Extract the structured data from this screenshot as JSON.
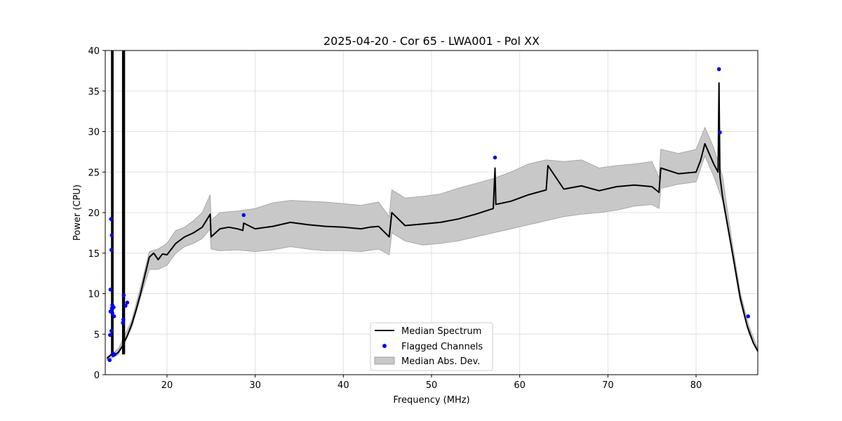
{
  "chart_data": {
    "type": "line",
    "title": "2025-04-20 - Cor 65 - LWA001 - Pol XX",
    "xlabel": "Frequency (MHz)",
    "ylabel": "Power (CPU)",
    "xlim": [
      13,
      87
    ],
    "ylim": [
      0,
      40
    ],
    "xticks": [
      20,
      30,
      40,
      50,
      60,
      70,
      80
    ],
    "yticks": [
      0,
      5,
      10,
      15,
      20,
      25,
      30,
      35,
      40
    ],
    "grid": true,
    "legend_position": "lower-center",
    "series": [
      {
        "name": "Median Spectrum",
        "color": "#000000",
        "x": [
          13.2,
          13.5,
          13.7,
          13.9,
          14.1,
          14.5,
          15.0,
          15.5,
          16.0,
          16.5,
          17.0,
          17.5,
          18.0,
          18.5,
          19.0,
          19.5,
          20.0,
          21.0,
          22.0,
          23.0,
          24.0,
          24.9,
          25.0,
          26.0,
          27.0,
          28.0,
          28.6,
          28.7,
          30.0,
          32.0,
          34.0,
          36.0,
          38.0,
          40.0,
          42.0,
          43.0,
          44.0,
          45.2,
          45.5,
          47.0,
          49.0,
          51.0,
          53.0,
          55.0,
          57.0,
          57.2,
          57.3,
          59.0,
          61.0,
          63.0,
          63.2,
          65.0,
          67.0,
          69.0,
          71.0,
          73.0,
          75.0,
          75.8,
          76.0,
          78.0,
          80.0,
          80.5,
          81.0,
          82.0,
          82.5,
          82.6,
          82.7,
          83.0,
          84.0,
          85.0,
          85.8,
          86.5,
          87.0
        ],
        "values": [
          2.0,
          2.3,
          2.5,
          2.3,
          2.4,
          2.8,
          3.6,
          4.8,
          6.2,
          8.0,
          10.0,
          12.3,
          14.5,
          15.0,
          14.2,
          14.9,
          14.8,
          16.2,
          17.0,
          17.5,
          18.2,
          19.8,
          17.0,
          18.0,
          18.2,
          18.0,
          17.8,
          18.7,
          18.0,
          18.3,
          18.8,
          18.5,
          18.3,
          18.2,
          18.0,
          18.2,
          18.3,
          17.0,
          20.0,
          18.4,
          18.6,
          18.8,
          19.2,
          19.8,
          20.5,
          25.5,
          21.0,
          21.4,
          22.2,
          22.8,
          25.8,
          22.9,
          23.3,
          22.7,
          23.2,
          23.4,
          23.2,
          22.5,
          25.5,
          24.8,
          25.0,
          26.4,
          28.5,
          26.0,
          25.0,
          36.0,
          24.5,
          22.0,
          15.8,
          9.5,
          6.0,
          3.9,
          2.9
        ]
      }
    ],
    "spikes": [
      {
        "x": 13.75,
        "y_top": 40
      },
      {
        "x": 13.85,
        "y_top": 40
      },
      {
        "x": 15.0,
        "y_top": 40
      },
      {
        "x": 15.15,
        "y_top": 40
      }
    ],
    "mad_band": {
      "name": "Median Abs. Dev.",
      "color": "#c8c8c8",
      "x": [
        13.2,
        14.5,
        16.0,
        17.0,
        18.0,
        19.0,
        20.0,
        21.0,
        22.0,
        23.0,
        24.0,
        24.9,
        25.0,
        26.0,
        28.0,
        30.0,
        32.0,
        34.0,
        36.0,
        38.0,
        40.0,
        42.0,
        44.0,
        45.2,
        45.5,
        47.0,
        49.0,
        51.0,
        53.0,
        55.0,
        57.0,
        59.0,
        61.0,
        63.0,
        65.0,
        67.0,
        69.0,
        71.0,
        73.0,
        75.0,
        75.8,
        76.0,
        78.0,
        80.0,
        81.0,
        82.0,
        83.0,
        84.0,
        85.0,
        86.0,
        87.0
      ],
      "lower": [
        1.8,
        2.5,
        5.8,
        9.5,
        13.0,
        13.0,
        13.5,
        15.0,
        15.8,
        16.2,
        16.8,
        18.0,
        15.5,
        15.3,
        15.4,
        15.2,
        15.4,
        15.8,
        15.5,
        15.3,
        15.3,
        15.2,
        15.5,
        14.8,
        17.5,
        16.5,
        16.0,
        16.2,
        16.5,
        17.0,
        17.5,
        18.0,
        18.5,
        19.0,
        19.5,
        19.8,
        20.0,
        20.3,
        20.8,
        21.0,
        20.5,
        23.0,
        23.5,
        23.8,
        27.0,
        24.5,
        21.5,
        15.5,
        9.0,
        5.0,
        2.8
      ],
      "upper": [
        2.2,
        3.2,
        6.7,
        10.8,
        15.2,
        15.5,
        16.2,
        17.8,
        18.2,
        19.0,
        20.0,
        22.2,
        19.0,
        20.0,
        20.2,
        20.5,
        21.2,
        21.5,
        21.4,
        21.3,
        21.1,
        20.9,
        21.3,
        19.5,
        22.8,
        21.8,
        22.0,
        22.3,
        23.0,
        23.6,
        24.2,
        25.0,
        26.0,
        26.5,
        26.3,
        26.5,
        25.5,
        25.8,
        26.0,
        26.3,
        24.3,
        27.8,
        27.3,
        27.8,
        30.5,
        28.0,
        24.5,
        17.0,
        10.2,
        6.0,
        3.2
      ]
    },
    "flagged_channels": {
      "name": "Flagged Channels",
      "color": "#0000ff",
      "x": [
        13.5,
        13.55,
        13.6,
        13.6,
        13.65,
        13.7,
        13.7,
        13.75,
        13.75,
        13.8,
        13.8,
        13.85,
        13.9,
        13.95,
        14.0,
        14.05,
        15.0,
        15.05,
        15.1,
        15.3,
        15.5,
        28.7,
        57.2,
        82.6,
        82.7,
        85.9
      ],
      "values": [
        1.8,
        4.9,
        7.8,
        10.5,
        19.2,
        15.4,
        5.4,
        17.2,
        8.2,
        7.6,
        8.6,
        2.6,
        2.4,
        8.3,
        7.2,
        2.5,
        6.4,
        6.8,
        9.8,
        8.5,
        8.9,
        19.7,
        26.8,
        37.7,
        29.9,
        7.2
      ]
    }
  },
  "legend": {
    "items": [
      {
        "label": "Median Spectrum",
        "kind": "line",
        "color": "#000000"
      },
      {
        "label": "Flagged Channels",
        "kind": "marker",
        "color": "#0000ff"
      },
      {
        "label": "Median Abs. Dev.",
        "kind": "patch",
        "color": "#c8c8c8"
      }
    ]
  }
}
